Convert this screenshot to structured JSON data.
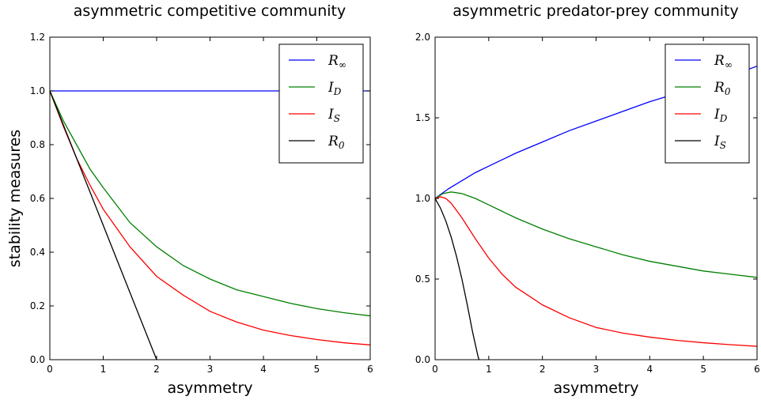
{
  "chart_data": [
    {
      "type": "line",
      "title": "asymmetric competitive community",
      "xlabel": "asymmetry",
      "ylabel": "stability measures",
      "xlim": [
        0,
        6
      ],
      "ylim": [
        0,
        1.2
      ],
      "xticks": [
        "0",
        "1",
        "2",
        "3",
        "4",
        "5",
        "6"
      ],
      "yticks": [
        "0.0",
        "0.2",
        "0.4",
        "0.6",
        "0.8",
        "1.0",
        "1.2"
      ],
      "legend_position": "top-right",
      "series": [
        {
          "name": "R",
          "sub": "∞",
          "color": "#0000ff",
          "x": [
            0,
            1,
            2,
            3,
            4,
            5,
            6
          ],
          "y": [
            1.0,
            1.0,
            1.0,
            1.0,
            1.0,
            1.0,
            1.0
          ]
        },
        {
          "name": "I",
          "sub": "D",
          "color": "#008000",
          "x": [
            0,
            0.25,
            0.5,
            0.75,
            1,
            1.5,
            2,
            2.5,
            3,
            3.5,
            4,
            4.5,
            5,
            5.5,
            6
          ],
          "y": [
            1.0,
            0.89,
            0.8,
            0.71,
            0.64,
            0.51,
            0.42,
            0.35,
            0.3,
            0.26,
            0.235,
            0.21,
            0.19,
            0.175,
            0.163
          ]
        },
        {
          "name": "I",
          "sub": "S",
          "color": "#ff0000",
          "x": [
            0,
            0.25,
            0.5,
            0.75,
            1,
            1.5,
            2,
            2.5,
            3,
            3.5,
            4,
            4.5,
            5,
            5.5,
            6
          ],
          "y": [
            1.0,
            0.87,
            0.75,
            0.65,
            0.56,
            0.42,
            0.31,
            0.24,
            0.18,
            0.14,
            0.11,
            0.09,
            0.075,
            0.063,
            0.055
          ]
        },
        {
          "name": "R",
          "sub": "0",
          "color": "#000000",
          "x": [
            0,
            2
          ],
          "y": [
            1.0,
            0.0
          ]
        }
      ]
    },
    {
      "type": "line",
      "title": "asymmetric predator-prey community",
      "xlabel": "asymmetry",
      "ylabel": "",
      "xlim": [
        0,
        6
      ],
      "ylim": [
        0,
        2.0
      ],
      "xticks": [
        "0",
        "1",
        "2",
        "3",
        "4",
        "5",
        "6"
      ],
      "yticks": [
        "0.0",
        "0.5",
        "1.0",
        "1.5",
        "2.0"
      ],
      "legend_position": "top-right",
      "series": [
        {
          "name": "R",
          "sub": "∞",
          "color": "#0000ff",
          "x": [
            0,
            0.25,
            0.5,
            0.75,
            1,
            1.5,
            2,
            2.5,
            3,
            3.5,
            4,
            4.5,
            5,
            5.5,
            6
          ],
          "y": [
            1.0,
            1.06,
            1.11,
            1.16,
            1.2,
            1.28,
            1.35,
            1.42,
            1.48,
            1.54,
            1.6,
            1.65,
            1.7,
            1.76,
            1.82
          ]
        },
        {
          "name": "R",
          "sub": "0",
          "color": "#008000",
          "x": [
            0,
            0.15,
            0.3,
            0.5,
            0.75,
            1,
            1.5,
            2,
            2.5,
            3,
            3.5,
            4,
            4.5,
            5,
            5.5,
            6
          ],
          "y": [
            1.0,
            1.03,
            1.04,
            1.03,
            1.0,
            0.96,
            0.88,
            0.81,
            0.75,
            0.7,
            0.65,
            0.61,
            0.58,
            0.55,
            0.53,
            0.51
          ]
        },
        {
          "name": "I",
          "sub": "D",
          "color": "#ff0000",
          "x": [
            0,
            0.1,
            0.2,
            0.3,
            0.5,
            0.75,
            1,
            1.25,
            1.5,
            2,
            2.5,
            3,
            3.5,
            4,
            4.5,
            5,
            5.5,
            6
          ],
          "y": [
            1.0,
            1.01,
            1.0,
            0.97,
            0.88,
            0.75,
            0.63,
            0.53,
            0.45,
            0.34,
            0.26,
            0.2,
            0.165,
            0.14,
            0.12,
            0.105,
            0.093,
            0.083
          ]
        },
        {
          "name": "I",
          "sub": "S",
          "color": "#000000",
          "x": [
            0,
            0.1,
            0.2,
            0.3,
            0.4,
            0.5,
            0.6,
            0.7,
            0.8,
            0.82
          ],
          "y": [
            1.0,
            0.94,
            0.86,
            0.76,
            0.64,
            0.5,
            0.34,
            0.17,
            0.02,
            0.0
          ]
        }
      ]
    }
  ]
}
